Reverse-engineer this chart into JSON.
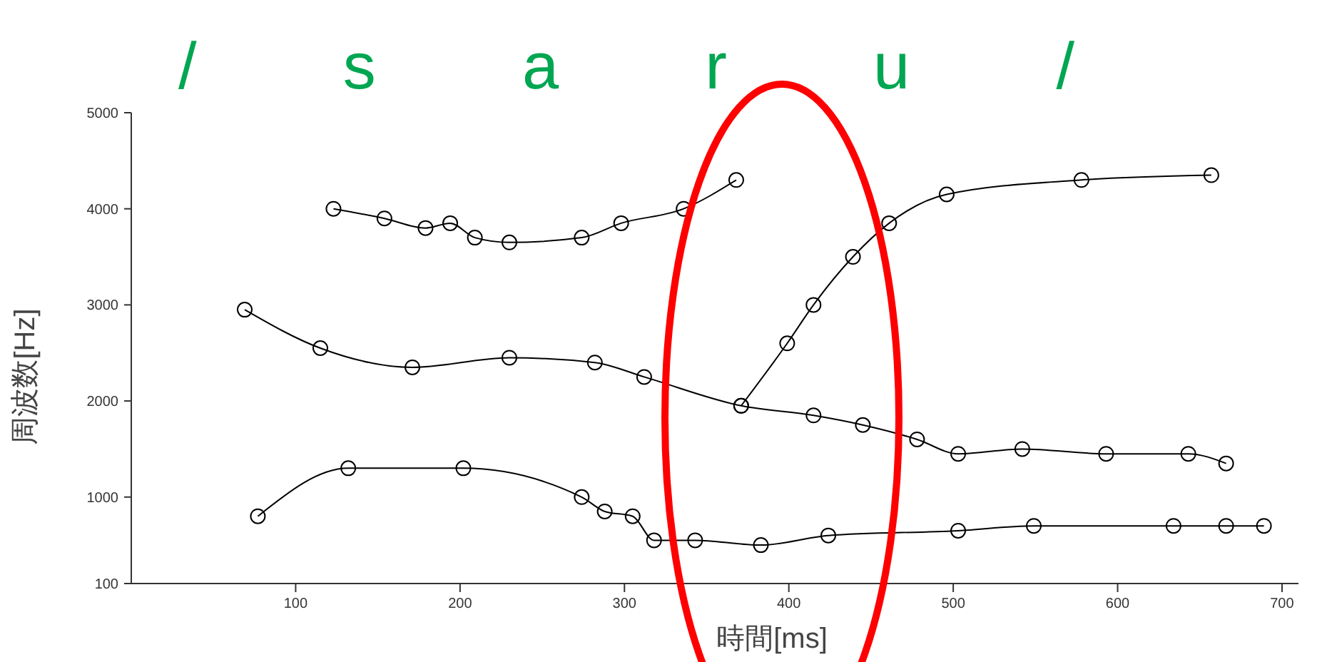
{
  "chart_data": {
    "type": "line",
    "xlabel": "時間[ms]",
    "ylabel": "周波数[Hz]",
    "annotations": [
      "/ s a r u /"
    ],
    "xlim": [
      0,
      710
    ],
    "xticks": [
      100,
      200,
      300,
      400,
      500,
      600,
      700
    ],
    "ylim": [
      100,
      5000
    ],
    "yticks": [
      100,
      1000,
      2000,
      3000,
      4000,
      5000
    ],
    "grid": false,
    "marker": "circle",
    "line_style": "solid",
    "series": [
      {
        "color": "#000000",
        "x": [
          77,
          132,
          202,
          274,
          288,
          305,
          318,
          343,
          383,
          424,
          503,
          549,
          634,
          666,
          689
        ],
        "values": [
          800,
          1300,
          1300,
          1000,
          850,
          800,
          550,
          550,
          500,
          600,
          650,
          700,
          700,
          700,
          700
        ]
      },
      {
        "color": "#000000",
        "x": [
          69,
          115,
          171,
          230,
          282,
          312,
          371,
          415,
          445,
          478,
          503,
          542,
          593,
          643,
          666
        ],
        "values": [
          2950,
          2550,
          2350,
          2450,
          2400,
          2250,
          1950,
          1850,
          1750,
          1600,
          1450,
          1500,
          1450,
          1450,
          1350
        ]
      },
      {
        "color": "#000000",
        "x": [
          371,
          399,
          415,
          439,
          461,
          496,
          578,
          657
        ],
        "values": [
          1950,
          2600,
          3000,
          3500,
          3850,
          4150,
          4300,
          4350
        ]
      },
      {
        "color": "#000000",
        "x": [
          123,
          154,
          179,
          194,
          209,
          230,
          274,
          298,
          336,
          368
        ],
        "values": [
          4000,
          3900,
          3800,
          3850,
          3700,
          3650,
          3700,
          3850,
          4000,
          4300
        ]
      }
    ]
  }
}
